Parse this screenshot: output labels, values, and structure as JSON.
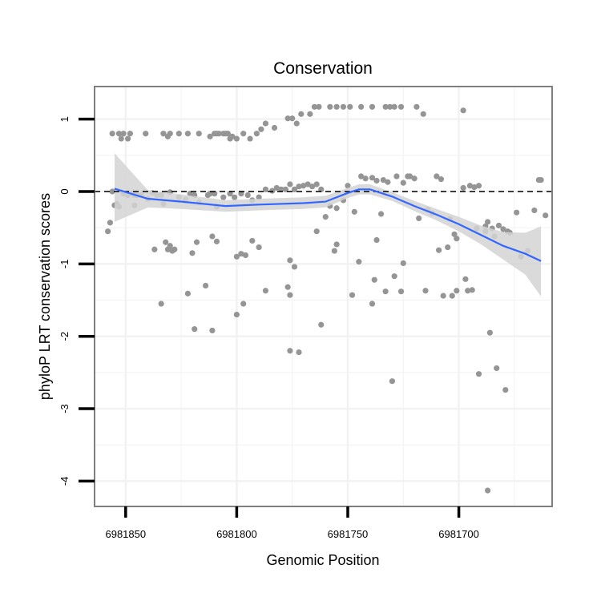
{
  "chart_data": {
    "type": "scatter",
    "title": "Conservation",
    "xlabel": "Genomic Position",
    "ylabel": "phyloP LRT conservation scores",
    "xlim": [
      6981864,
      6981658
    ],
    "x_reversed": true,
    "ylim": [
      -4.35,
      1.45
    ],
    "x_ticks": [
      6981850,
      6981800,
      6981750,
      6981700
    ],
    "y_ticks": [
      1,
      0,
      -1,
      -2,
      -3,
      -4
    ],
    "x_tick_labels": [
      "6981850",
      "6981800",
      "6981750",
      "6981700"
    ],
    "y_tick_labels": [
      "1",
      "0",
      "-1",
      "-2",
      "-3",
      "-4"
    ],
    "reference_line": 0,
    "grid": true,
    "colors": {
      "points": "#959595",
      "smooth_line": "#3366ff",
      "confidence_band": "#d3d3d3",
      "reference_line": "#000000",
      "panel_border": "#7f7f7f",
      "grid": "#f2f2f2"
    },
    "series": [
      {
        "type": "points",
        "points": [
          [
            6981856,
            0.8
          ],
          [
            6981853,
            0.8
          ],
          [
            6981852,
            0.73
          ],
          [
            6981851,
            0.8
          ],
          [
            6981849,
            0.73
          ],
          [
            6981848,
            0.8
          ],
          [
            6981841,
            0.8
          ],
          [
            6981833,
            0.8
          ],
          [
            6981831,
            0.76
          ],
          [
            6981830,
            0.8
          ],
          [
            6981826,
            0.8
          ],
          [
            6981822,
            0.8
          ],
          [
            6981817,
            0.8
          ],
          [
            6981812,
            0.76
          ],
          [
            6981810,
            0.8
          ],
          [
            6981809,
            0.8
          ],
          [
            6981808,
            0.8
          ],
          [
            6981806,
            0.8
          ],
          [
            6981805,
            0.8
          ],
          [
            6981804,
            0.8
          ],
          [
            6981803,
            0.73
          ],
          [
            6981802,
            0.76
          ],
          [
            6981800,
            0.73
          ],
          [
            6981797,
            0.8
          ],
          [
            6981794,
            0.73
          ],
          [
            6981791,
            0.8
          ],
          [
            6981789,
            0.86
          ],
          [
            6981787,
            0.94
          ],
          [
            6981783,
            0.88
          ],
          [
            6981777,
            1.01
          ],
          [
            6981775,
            1.01
          ],
          [
            6981773,
            0.94
          ],
          [
            6981771,
            1.07
          ],
          [
            6981767,
            1.07
          ],
          [
            6981765,
            1.17
          ],
          [
            6981763,
            1.17
          ],
          [
            6981758,
            1.17
          ],
          [
            6981755,
            1.17
          ],
          [
            6981752,
            1.17
          ],
          [
            6981749,
            1.17
          ],
          [
            6981744,
            1.17
          ],
          [
            6981739,
            1.17
          ],
          [
            6981733,
            1.17
          ],
          [
            6981731,
            1.17
          ],
          [
            6981729,
            1.17
          ],
          [
            6981726,
            1.17
          ],
          [
            6981719,
            1.17
          ],
          [
            6981716,
            1.07
          ],
          [
            6981698,
            1.12
          ],
          [
            6981856,
            0.0
          ],
          [
            6981855,
            -0.19
          ],
          [
            6981854,
            -0.17
          ],
          [
            6981853,
            -0.21
          ],
          [
            6981858,
            -0.55
          ],
          [
            6981857,
            -0.43
          ],
          [
            6981851,
            -0.03
          ],
          [
            6981849,
            -0.05
          ],
          [
            6981847,
            -0.03
          ],
          [
            6981846,
            -0.05
          ],
          [
            6981846,
            -0.19
          ],
          [
            6981845,
            -0.05
          ],
          [
            6981843,
            -0.05
          ],
          [
            6981840,
            -0.1
          ],
          [
            6981838,
            -0.02
          ],
          [
            6981836,
            -0.05
          ],
          [
            6981834,
            -0.05
          ],
          [
            6981833,
            -0.17
          ],
          [
            6981830,
            -0.01
          ],
          [
            6981826,
            -0.08
          ],
          [
            6981823,
            -0.11
          ],
          [
            6981821,
            -0.03
          ],
          [
            6981819,
            -0.05
          ],
          [
            6981817,
            -0.15
          ],
          [
            6981813,
            -0.05
          ],
          [
            6981812,
            -0.03
          ],
          [
            6981810,
            -0.03
          ],
          [
            6981809,
            -0.21
          ],
          [
            6981806,
            -0.08
          ],
          [
            6981803,
            -0.03
          ],
          [
            6981801,
            -0.08
          ],
          [
            6981798,
            -0.03
          ],
          [
            6981795,
            -0.05
          ],
          [
            6981793,
            -0.12
          ],
          [
            6981790,
            -0.08
          ],
          [
            6981787,
            0.03
          ],
          [
            6981784,
            0.01
          ],
          [
            6981782,
            0.05
          ],
          [
            6981780,
            0.03
          ],
          [
            6981778,
            0.03
          ],
          [
            6981776,
            0.1
          ],
          [
            6981774,
            0.03
          ],
          [
            6981772,
            0.07
          ],
          [
            6981770,
            0.08
          ],
          [
            6981768,
            0.1
          ],
          [
            6981766,
            0.07
          ],
          [
            6981764,
            0.1
          ],
          [
            6981762,
            0.03
          ],
          [
            6981758,
            -0.2
          ],
          [
            6981755,
            -0.23
          ],
          [
            6981752,
            -0.12
          ],
          [
            6981750,
            0.08
          ],
          [
            6981747,
            -0.28
          ],
          [
            6981744,
            0.21
          ],
          [
            6981742,
            0.18
          ],
          [
            6981739,
            0.19
          ],
          [
            6981737,
            0.15
          ],
          [
            6981735,
            -0.31
          ],
          [
            6981734,
            0.16
          ],
          [
            6981732,
            0.13
          ],
          [
            6981728,
            0.21
          ],
          [
            6981725,
            0.12
          ],
          [
            6981723,
            0.21
          ],
          [
            6981722,
            0.21
          ],
          [
            6981720,
            0.18
          ],
          [
            6981718,
            -0.37
          ],
          [
            6981714,
            -0.25
          ],
          [
            6981712,
            -0.3
          ],
          [
            6981710,
            0.21
          ],
          [
            6981708,
            0.17
          ],
          [
            6981704,
            -0.38
          ],
          [
            6981698,
            0.05
          ],
          [
            6981695,
            0.08
          ],
          [
            6981693,
            0.06
          ],
          [
            6981691,
            0.08
          ],
          [
            6981688,
            -0.55
          ],
          [
            6981687,
            -0.42
          ],
          [
            6981684,
            -0.62
          ],
          [
            6981682,
            -0.47
          ],
          [
            6981680,
            -0.52
          ],
          [
            6981678,
            -0.55
          ],
          [
            6981677,
            -0.57
          ],
          [
            6981674,
            -0.29
          ],
          [
            6981672,
            -0.9
          ],
          [
            6981669,
            -0.82
          ],
          [
            6981666,
            -0.26
          ],
          [
            6981664,
            0.16
          ],
          [
            6981663,
            0.16
          ],
          [
            6981661,
            -0.33
          ],
          [
            6981837,
            -0.8
          ],
          [
            6981832,
            -0.7
          ],
          [
            6981831,
            -0.8
          ],
          [
            6981830,
            -0.75
          ],
          [
            6981829,
            -0.82
          ],
          [
            6981828,
            -0.8
          ],
          [
            6981820,
            -0.85
          ],
          [
            6981818,
            -0.7
          ],
          [
            6981811,
            -0.62
          ],
          [
            6981809,
            -0.69
          ],
          [
            6981800,
            -0.9
          ],
          [
            6981798,
            -0.86
          ],
          [
            6981796,
            -0.88
          ],
          [
            6981793,
            -0.68
          ],
          [
            6981790,
            -0.77
          ],
          [
            6981776,
            -0.95
          ],
          [
            6981774,
            -1.04
          ],
          [
            6981764,
            -0.55
          ],
          [
            6981760,
            -0.35
          ],
          [
            6981756,
            -0.82
          ],
          [
            6981755,
            -0.73
          ],
          [
            6981745,
            -0.97
          ],
          [
            6981737,
            -0.67
          ],
          [
            6981733,
            -1.38
          ],
          [
            6981729,
            -1.17
          ],
          [
            6981725,
            -0.99
          ],
          [
            6981709,
            -0.81
          ],
          [
            6981705,
            -0.77
          ],
          [
            6981702,
            -0.59
          ],
          [
            6981701,
            -0.65
          ],
          [
            6981696,
            -1.37
          ],
          [
            6981692,
            -0.51
          ],
          [
            6981688,
            -0.48
          ],
          [
            6981685,
            -0.51
          ],
          [
            6981834,
            -1.55
          ],
          [
            6981822,
            -1.41
          ],
          [
            6981814,
            -1.3
          ],
          [
            6981800,
            -1.7
          ],
          [
            6981797,
            -1.55
          ],
          [
            6981787,
            -1.37
          ],
          [
            6981777,
            -1.32
          ],
          [
            6981776,
            -1.43
          ],
          [
            6981762,
            -1.84
          ],
          [
            6981748,
            -1.43
          ],
          [
            6981739,
            -1.55
          ],
          [
            6981738,
            -1.22
          ],
          [
            6981726,
            -1.38
          ],
          [
            6981715,
            -1.37
          ],
          [
            6981707,
            -1.44
          ],
          [
            6981703,
            -1.44
          ],
          [
            6981701,
            -1.37
          ],
          [
            6981697,
            -1.21
          ],
          [
            6981694,
            -1.36
          ],
          [
            6981819,
            -1.9
          ],
          [
            6981811,
            -1.92
          ],
          [
            6981776,
            -2.2
          ],
          [
            6981772,
            -2.22
          ],
          [
            6981730,
            -2.62
          ],
          [
            6981691,
            -2.52
          ],
          [
            6981686,
            -1.95
          ],
          [
            6981683,
            -2.44
          ],
          [
            6981679,
            -2.74
          ],
          [
            6981687,
            -4.13
          ]
        ]
      },
      {
        "type": "smooth",
        "points": [
          [
            6981855,
            0.04
          ],
          [
            6981840,
            -0.1
          ],
          [
            6981825,
            -0.14
          ],
          [
            6981805,
            -0.2
          ],
          [
            6981790,
            -0.18
          ],
          [
            6981770,
            -0.16
          ],
          [
            6981760,
            -0.14
          ],
          [
            6981750,
            -0.02
          ],
          [
            6981745,
            0.03
          ],
          [
            6981740,
            0.03
          ],
          [
            6981730,
            -0.07
          ],
          [
            6981720,
            -0.2
          ],
          [
            6981710,
            -0.32
          ],
          [
            6981700,
            -0.45
          ],
          [
            6981690,
            -0.6
          ],
          [
            6981680,
            -0.75
          ],
          [
            6981670,
            -0.86
          ],
          [
            6981663,
            -0.96
          ]
        ],
        "lower": [
          [
            6981855,
            -0.42
          ],
          [
            6981840,
            -0.22
          ],
          [
            6981825,
            -0.24
          ],
          [
            6981805,
            -0.28
          ],
          [
            6981790,
            -0.26
          ],
          [
            6981770,
            -0.24
          ],
          [
            6981760,
            -0.22
          ],
          [
            6981750,
            -0.09
          ],
          [
            6981745,
            -0.04
          ],
          [
            6981740,
            -0.04
          ],
          [
            6981730,
            -0.13
          ],
          [
            6981720,
            -0.27
          ],
          [
            6981710,
            -0.4
          ],
          [
            6981700,
            -0.55
          ],
          [
            6981690,
            -0.73
          ],
          [
            6981680,
            -0.94
          ],
          [
            6981670,
            -1.15
          ],
          [
            6981663,
            -1.45
          ]
        ],
        "upper": [
          [
            6981855,
            0.53
          ],
          [
            6981840,
            0.02
          ],
          [
            6981825,
            -0.04
          ],
          [
            6981805,
            -0.12
          ],
          [
            6981790,
            -0.1
          ],
          [
            6981770,
            -0.08
          ],
          [
            6981760,
            -0.06
          ],
          [
            6981750,
            0.05
          ],
          [
            6981745,
            0.1
          ],
          [
            6981740,
            0.1
          ],
          [
            6981730,
            -0.01
          ],
          [
            6981720,
            -0.13
          ],
          [
            6981710,
            -0.24
          ],
          [
            6981700,
            -0.35
          ],
          [
            6981690,
            -0.47
          ],
          [
            6981680,
            -0.56
          ],
          [
            6981670,
            -0.57
          ],
          [
            6981663,
            -0.48
          ]
        ]
      }
    ]
  }
}
